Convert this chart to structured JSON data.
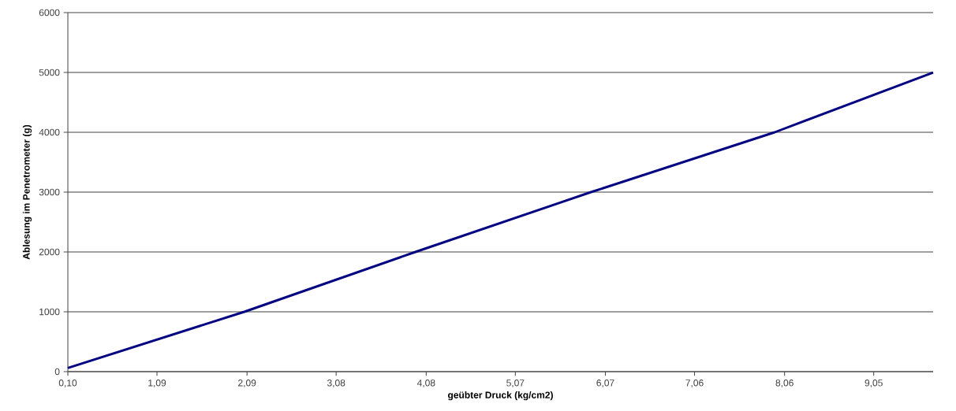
{
  "chart_data": {
    "type": "line",
    "xlabel": "geübter Druck (kg/cm2)",
    "ylabel": "Ablesung im Penetrometer (g)",
    "x": [
      0.1,
      2.06,
      3.96,
      5.91,
      7.95,
      9.71
    ],
    "series": [
      {
        "color": "#000080",
        "values": [
          60,
          1000,
          2000,
          3000,
          4000,
          5000
        ]
      }
    ],
    "xlim": [
      0.1,
      9.71
    ],
    "xticks": [
      {
        "value": 0.1,
        "label": "0,10"
      },
      {
        "value": 1.09,
        "label": "1,09"
      },
      {
        "value": 2.09,
        "label": "2,09"
      },
      {
        "value": 3.08,
        "label": "3,08"
      },
      {
        "value": 4.08,
        "label": "4,08"
      },
      {
        "value": 5.07,
        "label": "5,07"
      },
      {
        "value": 6.07,
        "label": "6,07"
      },
      {
        "value": 7.06,
        "label": "7,06"
      },
      {
        "value": 8.06,
        "label": "8,06"
      },
      {
        "value": 9.05,
        "label": "9,05"
      }
    ],
    "ylim": [
      0,
      6000
    ],
    "yticks": [
      0,
      1000,
      2000,
      3000,
      4000,
      5000,
      6000
    ],
    "grid": "y",
    "marker": "none",
    "line_style": "solid"
  }
}
